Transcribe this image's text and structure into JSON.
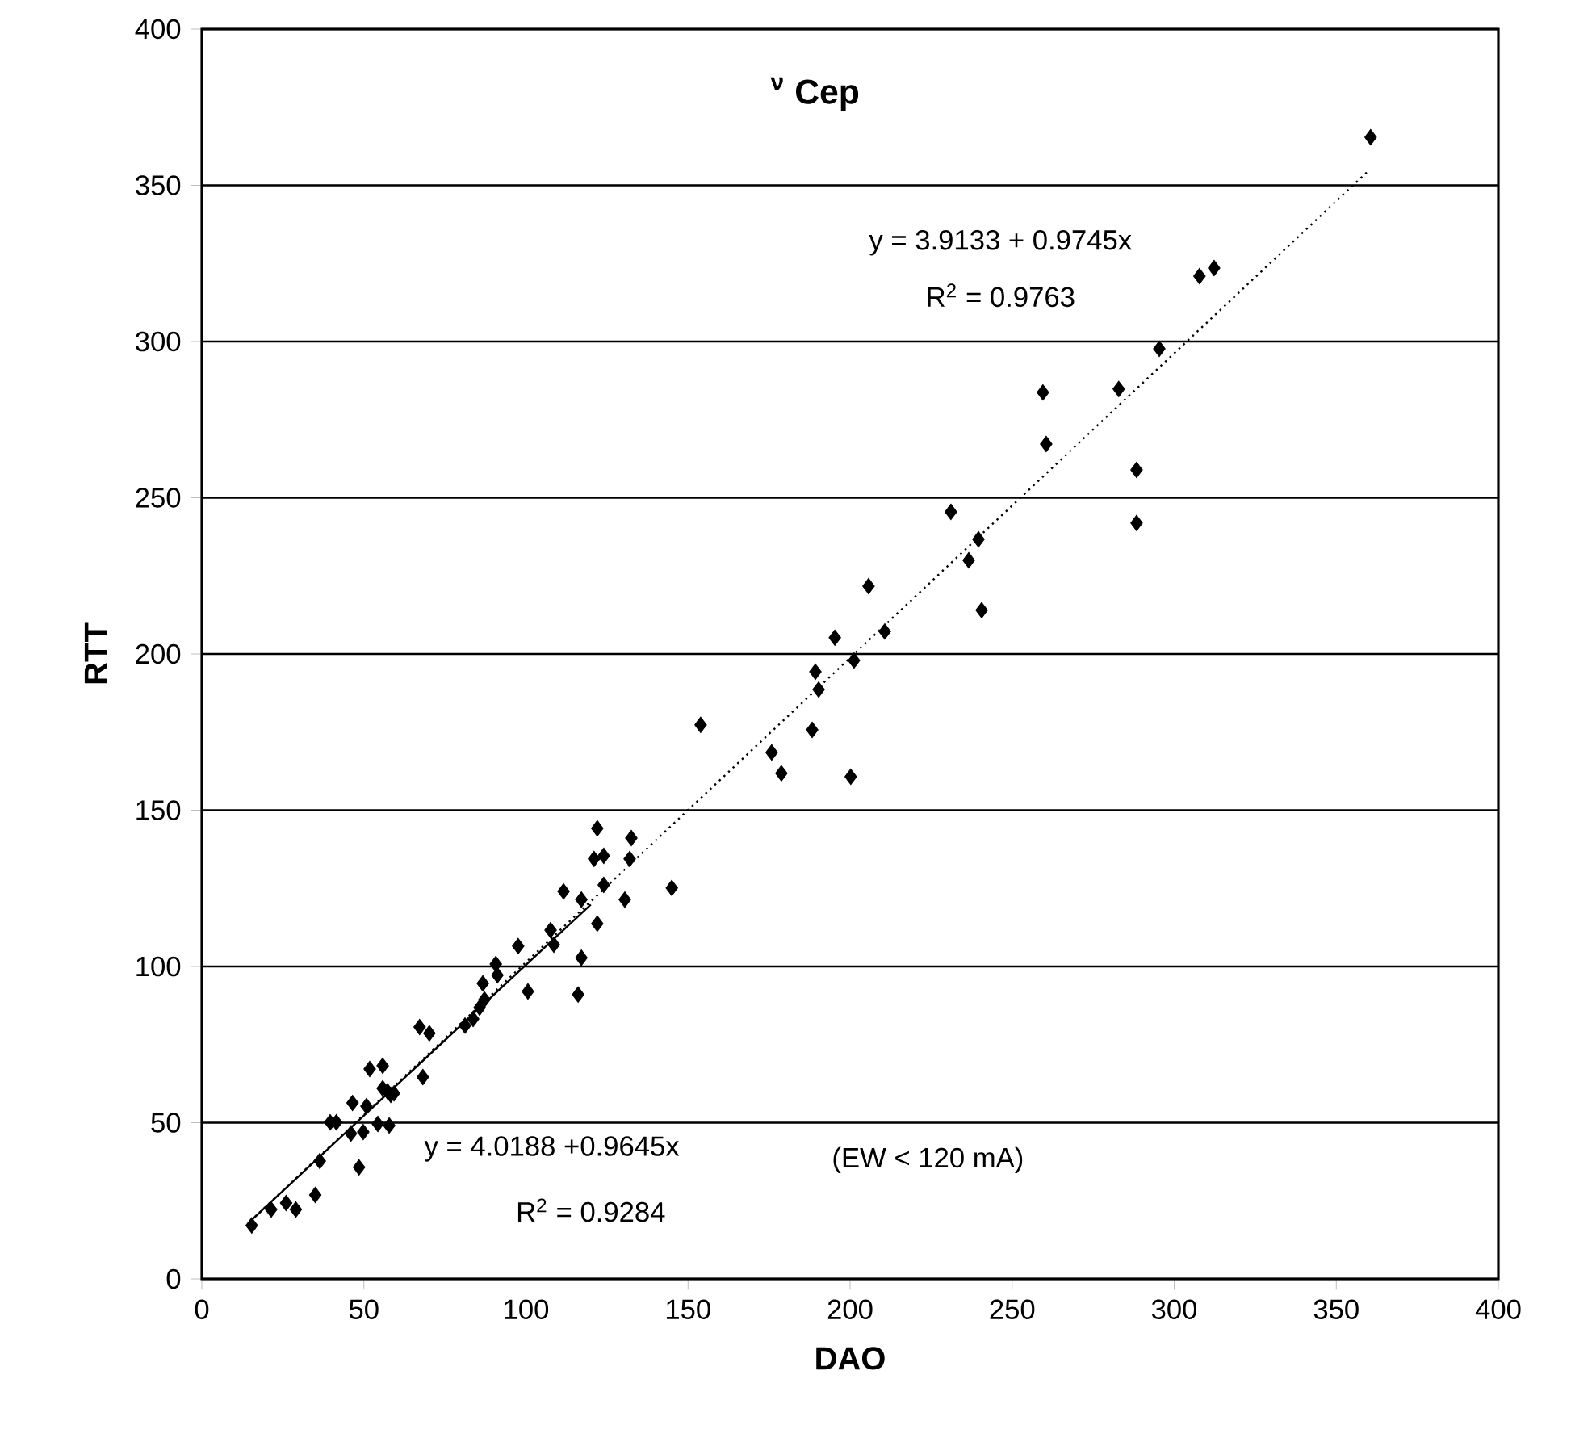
{
  "chart_data": {
    "type": "scatter",
    "title": "$^{ν}$ Cep",
    "xlabel": "DAO",
    "ylabel": "RTT",
    "xlim": [
      0,
      400
    ],
    "xticks": [
      0,
      50,
      100,
      150,
      200,
      250,
      300,
      350,
      400
    ],
    "ylim": [
      0,
      400
    ],
    "yticks": [
      0,
      50,
      100,
      150,
      200,
      250,
      300,
      350,
      400
    ],
    "grid": "y",
    "marker": "diamond",
    "series": [
      {
        "type": "scatter",
        "color": "#000000",
        "x": [
          15.4,
          21.4,
          26,
          29,
          35,
          36.4,
          39.6,
          41.5,
          46,
          46.5,
          48.5,
          49.8,
          50.8,
          51.8,
          55.8,
          55.8,
          57.3,
          57.8,
          58.3,
          59.3,
          54.3,
          68.2,
          67.2,
          70.2,
          81.2,
          83.7,
          85.7,
          87.2,
          86.7,
          90.7,
          91.2,
          97.6,
          100.6,
          107.6,
          108.6,
          111.6,
          116.1,
          117.1,
          117.1,
          121,
          122,
          122,
          124,
          124,
          130.5,
          132,
          132.5,
          145,
          153.9,
          175.8,
          178.8,
          188.3,
          189.3,
          190.3,
          195.3,
          200.2,
          201.2,
          205.7,
          210.7,
          231.1,
          236.6,
          239.6,
          240.6,
          259.5,
          260.5,
          282.9,
          288.4,
          288.4,
          295.4,
          307.8,
          312.3,
          360.6
        ],
        "values": [
          17.1,
          22.2,
          24.3,
          22.2,
          26.9,
          37.7,
          50.1,
          50.1,
          46.5,
          56.3,
          35.7,
          47,
          55.3,
          67.2,
          68.2,
          61,
          60,
          49.1,
          58.9,
          59.4,
          49.6,
          64.6,
          80.6,
          78.6,
          81.1,
          83.2,
          86.8,
          89.4,
          94.6,
          100.8,
          97.2,
          106.5,
          92,
          111.6,
          107,
          124,
          91,
          121.4,
          102.8,
          134.4,
          144.2,
          113.7,
          135.4,
          126.1,
          121.4,
          134.4,
          141.1,
          125.1,
          177.3,
          168.5,
          161.8,
          175.7,
          194.3,
          188.6,
          205.2,
          160.7,
          197.9,
          221.7,
          207.2,
          245.5,
          230,
          236.7,
          214,
          283.7,
          267.2,
          284.8,
          258.9,
          241.9,
          297.7,
          320.9,
          323.5,
          365.4
        ]
      },
      {
        "type": "line",
        "color": "#000000",
        "line_style": "dotted",
        "marker": "none",
        "x": [
          15,
          360
        ],
        "values": [
          18.5,
          354.7
        ]
      },
      {
        "type": "line",
        "color": "#000000",
        "line_style": "solid",
        "marker": "none",
        "x": [
          15,
          120
        ],
        "values": [
          18.5,
          119.8
        ]
      }
    ],
    "annotations": [
      "y = 3.9133 + 0.9745x",
      "R$^{2}$ = 0.9763",
      "y = 4.0188 +0.9645x",
      "R$^{2}$ = 0.9284",
      "(EW < 120 mA)"
    ]
  }
}
